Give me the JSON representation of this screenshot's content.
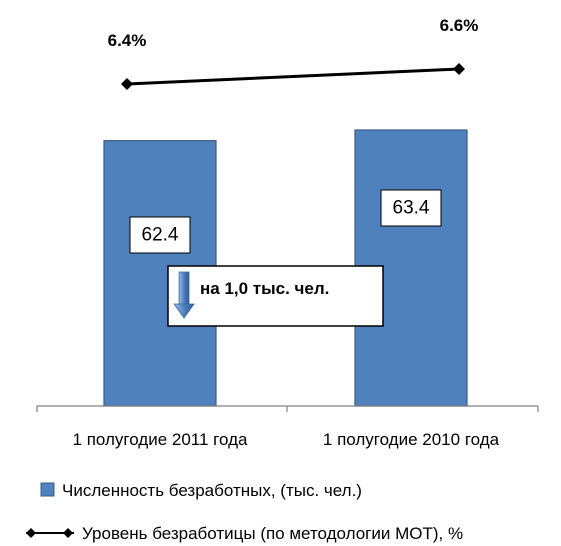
{
  "chart_data": {
    "type": "bar",
    "categories": [
      "1 полугодие 2011 года",
      "1 полугодие 2010 года"
    ],
    "series": [
      {
        "name": "Численность безработных, (тыс. чел.)",
        "kind": "bar",
        "values": [
          62.4,
          63.4
        ],
        "value_labels": [
          "62.4",
          "63.4"
        ],
        "color": "#4F81BD"
      },
      {
        "name": "Уровень безработицы (по методологии МОТ), %",
        "kind": "line",
        "values": [
          6.4,
          6.6
        ],
        "value_labels": [
          "6.4%",
          "6.6%"
        ],
        "color": "#000000",
        "marker": "diamond"
      }
    ],
    "annotation": "на 1,0 тыс. чел.",
    "annotation_icon": "arrow-down-icon",
    "legend_position": "bottom",
    "grid": false
  }
}
